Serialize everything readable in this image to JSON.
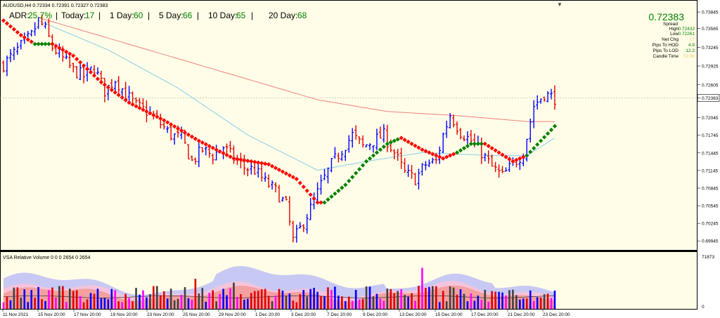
{
  "window": {
    "symbol_line": "AUDUSD,H4  0.72334 0.72391 0.72327 0.72383",
    "subwindow_title": "VSA Relative Volume 0 0 0 2654 0 2654"
  },
  "adr_bar": [
    {
      "label": "ADR:",
      "value": "25.7%"
    },
    {
      "label": "Today:",
      "value": "17"
    },
    {
      "label": "1 Day:",
      "value": "60"
    },
    {
      "label": "5 Day:",
      "value": "66"
    },
    {
      "label": "10 Day:",
      "value": "65"
    },
    {
      "label": "20 Day:",
      "value": "68"
    }
  ],
  "info_panel": {
    "price": "0.72383",
    "rows": [
      {
        "label": "Spread",
        "value": ""
      },
      {
        "label": "High",
        "value": "0.72432"
      },
      {
        "label": "Low",
        "value": "0.72261"
      },
      {
        "label": "Net Chg",
        "value": "17"
      },
      {
        "label": "Pips To HOD",
        "value": "4.9"
      },
      {
        "label": "Pips To LOD",
        "value": "12.2"
      },
      {
        "label": "Candle Time",
        "value": "03:36"
      }
    ]
  },
  "colors": {
    "background": "#fffde7",
    "up_bar": "#0000ff",
    "down_bar": "#e00000",
    "ma_slow": "#f08080",
    "ma_fast": "#87ceeb",
    "trend_up": "#008000",
    "trend_down": "#ff0000",
    "adr_value": "#008000",
    "vol_band_outer": "#f4a0a0",
    "vol_band_mid": "#f4c4dc",
    "vol_band_inner": "#c8c8f4"
  },
  "chart_data": {
    "type": "ohlc",
    "y_ticks": [
      "0.73845",
      "0.73565",
      "0.73245",
      "0.72925",
      "0.72605",
      "0.72383",
      "0.72045",
      "0.71745",
      "0.71445",
      "0.71145",
      "0.70845",
      "0.70545",
      "0.70245",
      "0.69945"
    ],
    "ylim": [
      0.6984,
      0.7393
    ],
    "current_price": "0.72383",
    "x_ticks": [
      "11 Nov 2021",
      "15 Nov 20:00",
      "17 Nov 20:00",
      "19 Nov 20:00",
      "23 Nov 20:00",
      "25 Nov 20:00",
      "29 Nov 20:00",
      "1 Dec 20:00",
      "3 Dec 20:00",
      "7 Dec 20:00",
      "9 Dec 20:00",
      "13 Dec 20:00",
      "15 Dec 20:00",
      "17 Dec 20:00",
      "21 Dec 20:00",
      "23 Dec 20:00"
    ],
    "close_anchors": [
      [
        0,
        0.7295
      ],
      [
        4,
        0.732
      ],
      [
        8,
        0.7345
      ],
      [
        10,
        0.737
      ],
      [
        12,
        0.7355
      ],
      [
        14,
        0.7325
      ],
      [
        17,
        0.7305
      ],
      [
        20,
        0.7285
      ],
      [
        23,
        0.7275
      ],
      [
        26,
        0.729
      ],
      [
        29,
        0.725
      ],
      [
        32,
        0.727
      ],
      [
        35,
        0.7245
      ],
      [
        38,
        0.7225
      ],
      [
        41,
        0.7215
      ],
      [
        44,
        0.72
      ],
      [
        48,
        0.7175
      ],
      [
        51,
        0.717
      ],
      [
        54,
        0.713
      ],
      [
        57,
        0.715
      ],
      [
        60,
        0.714
      ],
      [
        63,
        0.7155
      ],
      [
        66,
        0.7135
      ],
      [
        69,
        0.712
      ],
      [
        72,
        0.7115
      ],
      [
        75,
        0.7095
      ],
      [
        78,
        0.708
      ],
      [
        81,
        0.7055
      ],
      [
        83,
        0.6995
      ],
      [
        85,
        0.7015
      ],
      [
        88,
        0.705
      ],
      [
        91,
        0.709
      ],
      [
        94,
        0.7125
      ],
      [
        97,
        0.715
      ],
      [
        100,
        0.7175
      ],
      [
        103,
        0.7155
      ],
      [
        106,
        0.7165
      ],
      [
        109,
        0.7175
      ],
      [
        112,
        0.7145
      ],
      [
        115,
        0.711
      ],
      [
        118,
        0.71
      ],
      [
        121,
        0.7125
      ],
      [
        124,
        0.713
      ],
      [
        126,
        0.7175
      ],
      [
        128,
        0.721
      ],
      [
        131,
        0.718
      ],
      [
        134,
        0.7165
      ],
      [
        137,
        0.7145
      ],
      [
        140,
        0.712
      ],
      [
        143,
        0.7105
      ],
      [
        146,
        0.7125
      ],
      [
        149,
        0.7145
      ],
      [
        152,
        0.7225
      ],
      [
        155,
        0.7245
      ],
      [
        158,
        0.7238
      ]
    ],
    "trend_anchors": [
      [
        0,
        0.737,
        "down"
      ],
      [
        5,
        0.7345,
        "down"
      ],
      [
        9,
        0.733,
        "up"
      ],
      [
        14,
        0.733,
        "down"
      ],
      [
        20,
        0.731,
        "down"
      ],
      [
        28,
        0.7265,
        "down"
      ],
      [
        36,
        0.723,
        "down"
      ],
      [
        46,
        0.72,
        "down"
      ],
      [
        56,
        0.7165,
        "down"
      ],
      [
        66,
        0.7135,
        "down"
      ],
      [
        76,
        0.7125,
        "down"
      ],
      [
        84,
        0.71,
        "down"
      ],
      [
        90,
        0.706,
        "down"
      ],
      [
        92,
        0.706,
        "up"
      ],
      [
        98,
        0.709,
        "up"
      ],
      [
        104,
        0.713,
        "up"
      ],
      [
        110,
        0.716,
        "up"
      ],
      [
        114,
        0.717,
        "down"
      ],
      [
        120,
        0.715,
        "down"
      ],
      [
        126,
        0.7135,
        "down"
      ],
      [
        130,
        0.7145,
        "up"
      ],
      [
        134,
        0.716,
        "up"
      ],
      [
        138,
        0.716,
        "down"
      ],
      [
        146,
        0.713,
        "down"
      ],
      [
        150,
        0.714,
        "up"
      ],
      [
        154,
        0.7165,
        "up"
      ],
      [
        158,
        0.719,
        "up"
      ]
    ],
    "ma_slow_anchors": [
      [
        10,
        0.7375
      ],
      [
        30,
        0.734
      ],
      [
        50,
        0.7305
      ],
      [
        70,
        0.727
      ],
      [
        90,
        0.7235
      ],
      [
        110,
        0.7215
      ],
      [
        130,
        0.7208
      ],
      [
        150,
        0.7198
      ],
      [
        158,
        0.7198
      ]
    ],
    "ma_fast_anchors": [
      [
        10,
        0.737
      ],
      [
        30,
        0.732
      ],
      [
        50,
        0.7255
      ],
      [
        70,
        0.7175
      ],
      [
        90,
        0.7115
      ],
      [
        104,
        0.713
      ],
      [
        120,
        0.7145
      ],
      [
        140,
        0.714
      ],
      [
        150,
        0.714
      ],
      [
        158,
        0.717
      ]
    ],
    "volume": {
      "ylabels": [
        "71873",
        "0"
      ]
    }
  }
}
